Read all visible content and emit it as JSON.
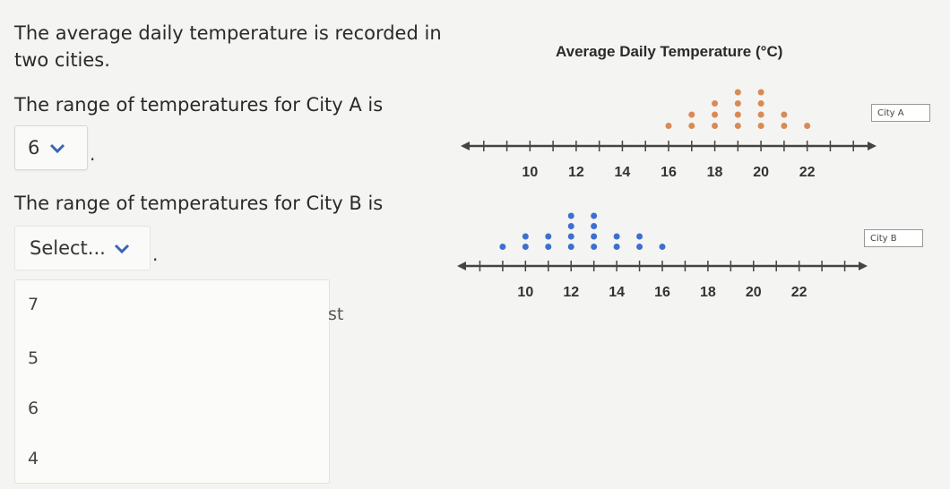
{
  "question": {
    "intro": "The average daily temperature is recorded in two cities.",
    "part_a_prompt": "The range of temperatures for City A is",
    "part_b_prompt": "The range of temperatures for City B is",
    "period": "."
  },
  "select_a": {
    "value": "6"
  },
  "select_b": {
    "value": "Select..."
  },
  "dropdown_options": [
    "7",
    "5",
    "6",
    "4"
  ],
  "partial_text": "st",
  "colors": {
    "city_a_dots": "#d98a55",
    "city_b_dots": "#3d6fd0",
    "axis": "#444444"
  },
  "chart_data": [
    {
      "type": "scatter",
      "title": "Average Daily Temperature (°C)",
      "legend": "City A",
      "xlim": [
        7,
        25
      ],
      "x_ticks": [
        10,
        12,
        14,
        16,
        18,
        20,
        22
      ],
      "x": [
        16,
        17,
        17,
        18,
        18,
        18,
        19,
        19,
        19,
        19,
        20,
        20,
        20,
        20,
        21,
        21,
        22
      ],
      "y": [
        1,
        1,
        2,
        1,
        2,
        3,
        1,
        2,
        3,
        4,
        1,
        2,
        3,
        4,
        1,
        2,
        1
      ]
    },
    {
      "type": "scatter",
      "legend": "City B",
      "xlim": [
        7,
        25
      ],
      "x_ticks": [
        10,
        12,
        14,
        16,
        18,
        20,
        22
      ],
      "x": [
        9,
        10,
        10,
        11,
        11,
        12,
        12,
        12,
        12,
        13,
        13,
        13,
        13,
        14,
        14,
        15,
        15,
        16
      ],
      "y": [
        1,
        1,
        2,
        1,
        2,
        1,
        2,
        3,
        4,
        1,
        2,
        3,
        4,
        1,
        2,
        1,
        2,
        1
      ]
    }
  ]
}
